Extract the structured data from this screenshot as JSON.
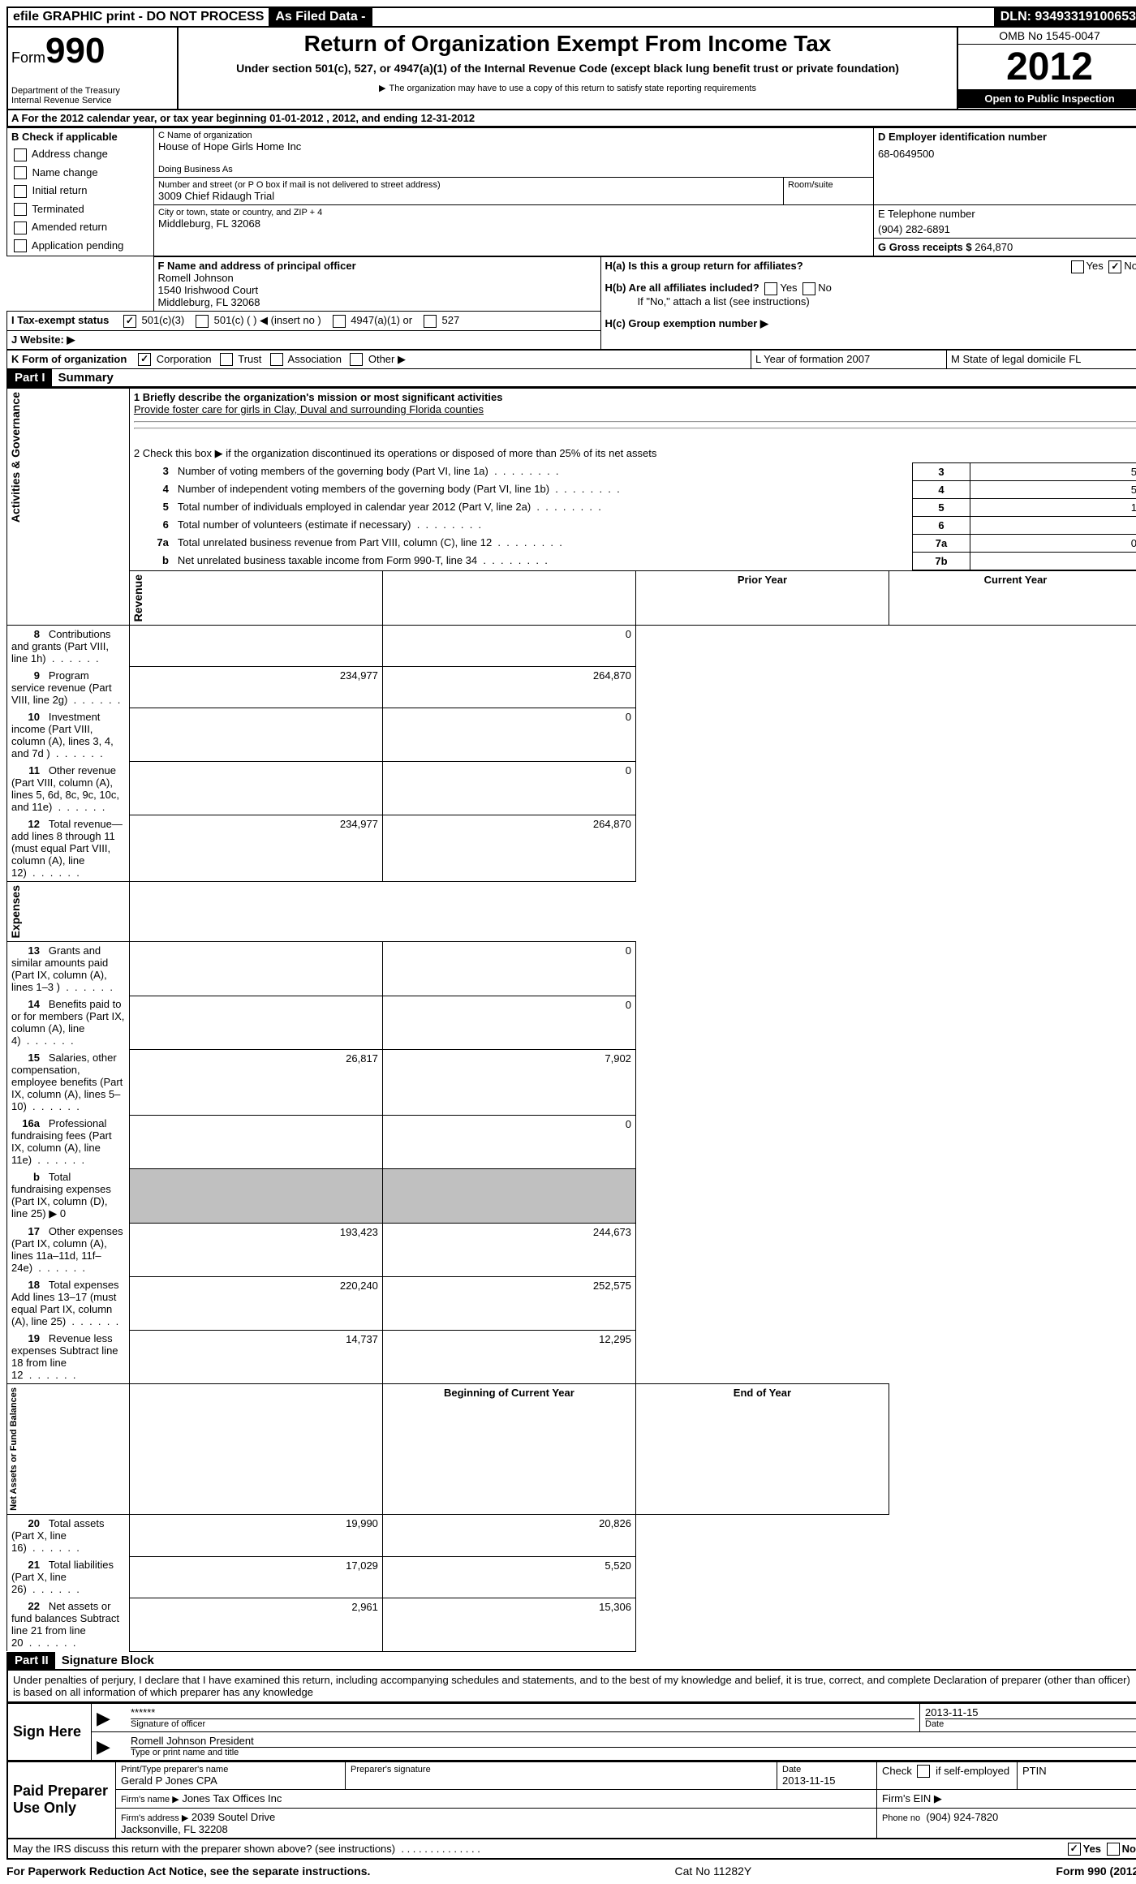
{
  "topbar": {
    "efile": "efile GRAPHIC print - DO NOT PROCESS",
    "asfiled": "As Filed Data -",
    "dln_label": "DLN:",
    "dln": "93493319100653"
  },
  "header": {
    "form_label": "Form",
    "form_number": "990",
    "dept": "Department of the Treasury",
    "irs": "Internal Revenue Service",
    "title": "Return of Organization Exempt From Income Tax",
    "sub1": "Under section 501(c), 527, or 4947(a)(1) of the Internal Revenue Code (except black lung benefit trust or private foundation)",
    "sub2": "The organization may have to use a copy of this return to satisfy state reporting requirements",
    "omb": "OMB No  1545-0047",
    "year": "2012",
    "open": "Open to Public Inspection"
  },
  "rowA": "A  For the 2012 calendar year, or tax year beginning 01-01-2012     , 2012, and ending 12-31-2012",
  "boxB": {
    "title": "B  Check if applicable",
    "items": [
      "Address change",
      "Name change",
      "Initial return",
      "Terminated",
      "Amended return",
      "Application pending"
    ]
  },
  "boxC": {
    "label_name": "C Name of organization",
    "name": "House of Hope Girls Home Inc",
    "dba_label": "Doing Business As",
    "street_label": "Number and street (or P O  box if mail is not delivered to street address)",
    "street": "3009 Chief Ridaugh Trial",
    "room_label": "Room/suite",
    "city_label": "City or town, state or country, and ZIP + 4",
    "city": "Middleburg, FL  32068"
  },
  "boxD": {
    "label": "D Employer identification number",
    "value": "68-0649500"
  },
  "boxE": {
    "label": "E Telephone number",
    "value": "(904) 282-6891"
  },
  "boxG": {
    "label": "G Gross receipts $",
    "value": "264,870"
  },
  "boxF": {
    "label": "F   Name and address of principal officer",
    "name": "Romell Johnson",
    "addr1": "1540 Irishwood Court",
    "addr2": "Middleburg, FL  32068"
  },
  "boxH": {
    "a": "H(a)   Is this a group return for affiliates?",
    "b": "H(b)   Are all affiliates included?",
    "b_note": "If \"No,\" attach a list  (see instructions)",
    "c": "H(c)    Group exemption number ▶",
    "yes": "Yes",
    "no": "No"
  },
  "rowI": {
    "label": "I   Tax-exempt status",
    "opts": [
      "501(c)(3)",
      "501(c) (   ) ◀ (insert no )",
      "4947(a)(1) or",
      "527"
    ]
  },
  "rowJ": "J   Website: ▶",
  "rowK": {
    "label": "K Form of organization",
    "opts": [
      "Corporation",
      "Trust",
      "Association",
      "Other ▶"
    ],
    "year_label": "L Year of formation  2007",
    "state_label": "M State of legal domicile  FL"
  },
  "part1": {
    "header": "Part I",
    "title": "Summary",
    "groups": {
      "ag": "Activities & Governance",
      "rev": "Revenue",
      "exp": "Expenses",
      "na": "Net Assets or Fund Balances"
    },
    "line1_label": "1    Briefly describe the organization's mission or most significant activities",
    "line1_text": "Provide foster care for girls in Clay, Duval and surrounding Florida counties",
    "line2": "2    Check this box ▶      if the organization discontinued its operations or disposed of more than 25% of its net assets",
    "lines_ag": [
      {
        "n": "3",
        "t": "Number of voting members of the governing body (Part VI, line 1a)",
        "box": "3",
        "v": "5"
      },
      {
        "n": "4",
        "t": "Number of independent voting members of the governing body (Part VI, line 1b)",
        "box": "4",
        "v": "5"
      },
      {
        "n": "5",
        "t": "Total number of individuals employed in calendar year 2012 (Part V, line 2a)",
        "box": "5",
        "v": "1"
      },
      {
        "n": "6",
        "t": "Total number of volunteers (estimate if necessary)",
        "box": "6",
        "v": ""
      },
      {
        "n": "7a",
        "t": "Total unrelated business revenue from Part VIII, column (C), line 12",
        "box": "7a",
        "v": "0"
      },
      {
        "n": "b",
        "t": "Net unrelated business taxable income from Form 990-T, line 34",
        "box": "7b",
        "v": ""
      }
    ],
    "col_prior": "Prior Year",
    "col_current": "Current Year",
    "lines_rev": [
      {
        "n": "8",
        "t": "Contributions and grants (Part VIII, line 1h)",
        "p": "",
        "c": "0"
      },
      {
        "n": "9",
        "t": "Program service revenue (Part VIII, line 2g)",
        "p": "234,977",
        "c": "264,870"
      },
      {
        "n": "10",
        "t": "Investment income (Part VIII, column (A), lines 3, 4, and 7d )",
        "p": "",
        "c": "0"
      },
      {
        "n": "11",
        "t": "Other revenue (Part VIII, column (A), lines 5, 6d, 8c, 9c, 10c, and 11e)",
        "p": "",
        "c": "0"
      },
      {
        "n": "12",
        "t": "Total revenue—add lines 8 through 11 (must equal Part VIII, column (A), line 12)",
        "p": "234,977",
        "c": "264,870"
      }
    ],
    "lines_exp": [
      {
        "n": "13",
        "t": "Grants and similar amounts paid (Part IX, column (A), lines 1–3 )",
        "p": "",
        "c": "0"
      },
      {
        "n": "14",
        "t": "Benefits paid to or for members (Part IX, column (A), line 4)",
        "p": "",
        "c": "0"
      },
      {
        "n": "15",
        "t": "Salaries, other compensation, employee benefits (Part IX, column (A), lines 5–10)",
        "p": "26,817",
        "c": "7,902"
      },
      {
        "n": "16a",
        "t": "Professional fundraising fees (Part IX, column (A), line 11e)",
        "p": "",
        "c": "0"
      },
      {
        "n": "b",
        "t": "Total fundraising expenses (Part IX, column (D), line 25)  ▶ 0",
        "p": "grey",
        "c": "grey"
      },
      {
        "n": "17",
        "t": "Other expenses (Part IX, column (A), lines 11a–11d, 11f–24e)",
        "p": "193,423",
        "c": "244,673"
      },
      {
        "n": "18",
        "t": "Total expenses  Add lines 13–17 (must equal Part IX, column (A), line 25)",
        "p": "220,240",
        "c": "252,575"
      },
      {
        "n": "19",
        "t": "Revenue less expenses  Subtract line 18 from line 12",
        "p": "14,737",
        "c": "12,295"
      }
    ],
    "col_begin": "Beginning of Current Year",
    "col_end": "End of Year",
    "lines_na": [
      {
        "n": "20",
        "t": "Total assets (Part X, line 16)",
        "p": "19,990",
        "c": "20,826"
      },
      {
        "n": "21",
        "t": "Total liabilities (Part X, line 26)",
        "p": "17,029",
        "c": "5,520"
      },
      {
        "n": "22",
        "t": "Net assets or fund balances  Subtract line 21 from line 20",
        "p": "2,961",
        "c": "15,306"
      }
    ]
  },
  "part2": {
    "header": "Part II",
    "title": "Signature Block",
    "perjury": "Under penalties of perjury, I declare that I have examined this return, including accompanying schedules and statements, and to the best of my knowledge and belief, it is true, correct, and complete  Declaration of preparer (other than officer) is based on all information of which preparer has any knowledge",
    "sign_here": "Sign Here",
    "sig_stars": "******",
    "sig_label": "Signature of officer",
    "date": "2013-11-15",
    "date_label": "Date",
    "officer": "Romell Johnson President",
    "officer_label": "Type or print name and title",
    "paid": "Paid Preparer Use Only",
    "prep_name_label": "Print/Type preparer's name",
    "prep_name": "Gerald P Jones CPA",
    "prep_sig_label": "Preparer's signature",
    "prep_date_label": "Date",
    "prep_date": "2013-11-15",
    "self_emp": "Check        if self-employed",
    "ptin": "PTIN",
    "firm_name_label": "Firm's name    ▶",
    "firm_name": "Jones Tax Offices Inc",
    "firm_ein": "Firm's EIN ▶",
    "firm_addr_label": "Firm's address ▶",
    "firm_addr": "2039 Soutel Drive\nJacksonville, FL  32208",
    "phone_label": "Phone no",
    "phone": "(904) 924-7820",
    "discuss": "May the IRS discuss this return with the preparer shown above? (see instructions)",
    "yes": "Yes",
    "no": "No"
  },
  "footer": {
    "left": "For Paperwork Reduction Act Notice, see the separate instructions.",
    "mid": "Cat No  11282Y",
    "right": "Form 990 (2012)"
  }
}
